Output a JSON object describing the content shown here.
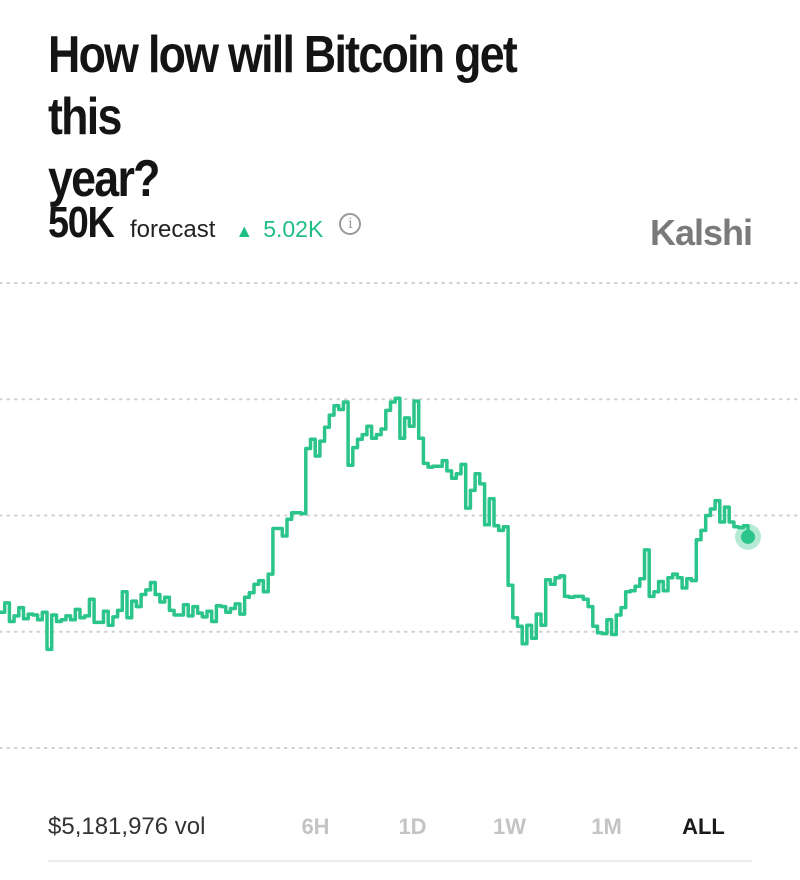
{
  "question": {
    "line1": "How low will Bitcoin get this",
    "line2": "year?"
  },
  "forecast": {
    "value": "50K",
    "label": "forecast",
    "change": "5.02K",
    "change_color": "#1fbe85"
  },
  "info_icon": {
    "name": "info-icon",
    "glyph": "i"
  },
  "brand": {
    "name": "Kalshi",
    "color": "#7a7a7a"
  },
  "footer": {
    "volume": "$5,181,976 vol",
    "ranges": [
      {
        "label": "6H",
        "active": false
      },
      {
        "label": "1D",
        "active": false
      },
      {
        "label": "1W",
        "active": false
      },
      {
        "label": "1M",
        "active": false
      },
      {
        "label": "ALL",
        "active": true
      }
    ]
  },
  "chart_data": {
    "type": "line",
    "line_color": "#2bc48a",
    "grid": true,
    "grid_style": "dotted horizontal",
    "series": [
      {
        "values": [
          44.6,
          45.6,
          43.6,
          44.2,
          45.1,
          43.9,
          44.4,
          44.3,
          43.8,
          44.6,
          40.6,
          44.3,
          43.6,
          43.8,
          44.2,
          43.8,
          44.9,
          44.0,
          44.2,
          46.0,
          43.5,
          43.5,
          44.7,
          43.2,
          44.1,
          44.8,
          46.8,
          44.0,
          45.8,
          45.2,
          46.5,
          47.0,
          47.8,
          46.5,
          45.7,
          46.2,
          44.8,
          44.3,
          44.3,
          45.4,
          44.2,
          45.2,
          44.5,
          44.1,
          44.7,
          43.6,
          45.3,
          45.2,
          44.6,
          45.0,
          45.5,
          44.4,
          46.2,
          46.7,
          47.6,
          48.0,
          46.8,
          48.7,
          53.6,
          53.6,
          52.8,
          54.6,
          55.3,
          55.3,
          55.2,
          62.2,
          63.2,
          61.4,
          63.0,
          64.5,
          65.8,
          66.8,
          66.4,
          67.2,
          60.4,
          62.3,
          63.2,
          63.7,
          64.6,
          63.3,
          63.7,
          64.3,
          66.3,
          67.2,
          67.6,
          63.3,
          65.5,
          64.6,
          67.3,
          63.3,
          60.6,
          60.2,
          60.3,
          60.3,
          60.9,
          59.8,
          59.0,
          59.5,
          60.5,
          55.8,
          57.7,
          59.5,
          58.4,
          54.0,
          56.8,
          53.9,
          53.4,
          53.8,
          47.5,
          44.0,
          43.1,
          41.2,
          43.2,
          41.8,
          44.4,
          43.2,
          48.1,
          47.6,
          48.3,
          48.5,
          46.3,
          46.2,
          46.3,
          46.3,
          46.0,
          45.2,
          43.1,
          42.4,
          42.3,
          43.8,
          42.2,
          44.3,
          45.1,
          46.8,
          46.9,
          47.4,
          48.2,
          51.3,
          46.3,
          46.8,
          47.9,
          46.9,
          48.3,
          48.7,
          48.3,
          47.2,
          48.2,
          48.0,
          52.4,
          53.4,
          55.0,
          55.7,
          56.6,
          54.3,
          55.9,
          54.3,
          53.8,
          53.7,
          53.9,
          52.7
        ]
      }
    ],
    "current_point": true
  }
}
